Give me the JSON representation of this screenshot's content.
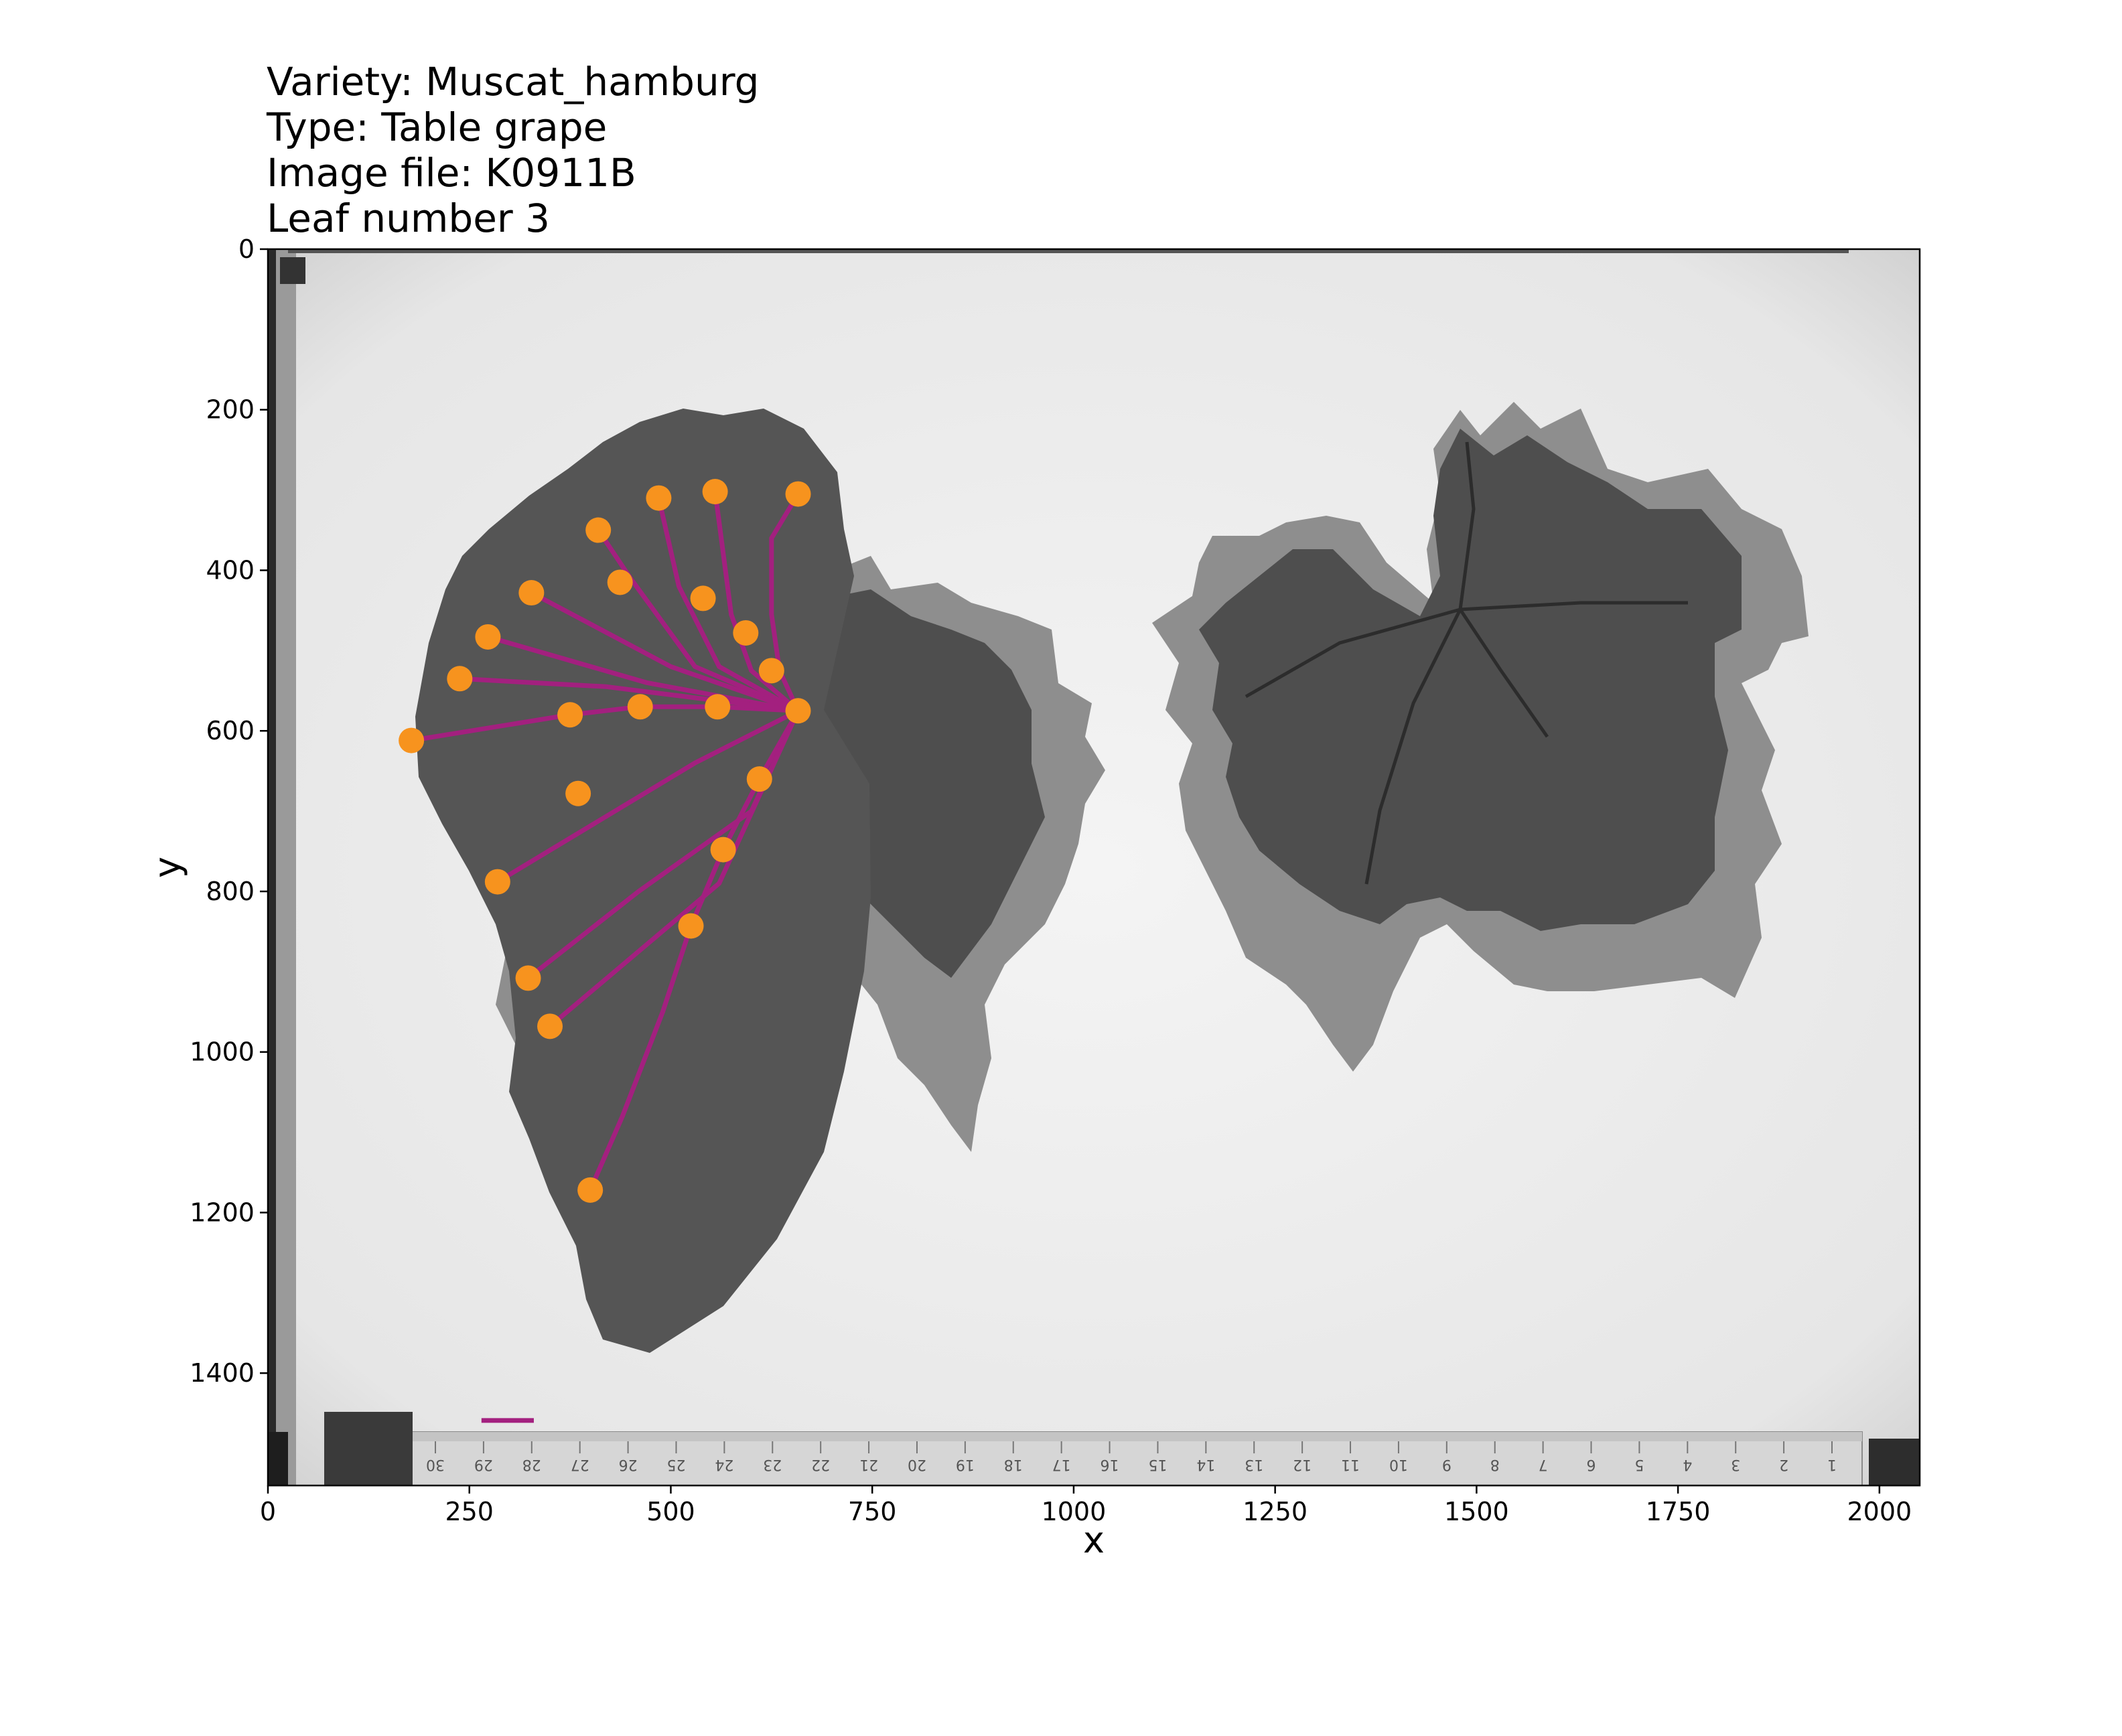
{
  "title_lines": [
    "Variety: Muscat_hamburg",
    "Type: Table grape",
    "Image file: K0911B",
    "Leaf number 3"
  ],
  "colors": {
    "landmark": "#f7931e",
    "outline": "#a3207f",
    "scale_bar": "#a3207f",
    "background": "#ececec",
    "leaf_dark": "#4e4e4e",
    "leaf_light": "#8e8e8e"
  },
  "ruler_numbers": [
    "30",
    "29",
    "28",
    "27",
    "26",
    "25",
    "24",
    "23",
    "22",
    "21",
    "20",
    "19",
    "18",
    "17",
    "16",
    "15",
    "14",
    "13",
    "12",
    "11",
    "10",
    "9",
    "8",
    "7",
    "6",
    "5",
    "4",
    "3",
    "2",
    "1"
  ],
  "chart_data": {
    "type": "scatter",
    "xlabel": "x",
    "ylabel": "y",
    "xlim": [
      0,
      2050
    ],
    "ylim": [
      1540,
      0
    ],
    "x_ticks": [
      0,
      250,
      500,
      750,
      1000,
      1250,
      1500,
      1750,
      2000
    ],
    "y_ticks": [
      0,
      200,
      400,
      600,
      800,
      1000,
      1200,
      1400
    ],
    "grid": false,
    "background": "grayscale photograph of two grape leaves on a light board with a ruler along the bottom",
    "landmarks": {
      "color": "#f7931e",
      "points": [
        [
          658,
          305
        ],
        [
          555,
          302
        ],
        [
          485,
          310
        ],
        [
          410,
          350
        ],
        [
          327,
          428
        ],
        [
          437,
          415
        ],
        [
          540,
          435
        ],
        [
          593,
          478
        ],
        [
          625,
          525
        ],
        [
          273,
          483
        ],
        [
          238,
          535
        ],
        [
          375,
          580
        ],
        [
          462,
          570
        ],
        [
          558,
          570
        ],
        [
          658,
          575
        ],
        [
          178,
          612
        ],
        [
          610,
          660
        ],
        [
          385,
          678
        ],
        [
          565,
          748
        ],
        [
          285,
          788
        ],
        [
          525,
          843
        ],
        [
          323,
          908
        ],
        [
          350,
          968
        ],
        [
          400,
          1172
        ]
      ]
    },
    "veins": {
      "color": "#a3207f",
      "polylines": [
        [
          [
            400,
            1172
          ],
          [
            440,
            1080
          ],
          [
            490,
            950
          ],
          [
            525,
            843
          ],
          [
            565,
            748
          ],
          [
            610,
            660
          ],
          [
            658,
            575
          ]
        ],
        [
          [
            658,
            575
          ],
          [
            558,
            570
          ],
          [
            462,
            570
          ],
          [
            375,
            580
          ],
          [
            178,
            612
          ]
        ],
        [
          [
            658,
            575
          ],
          [
            635,
            525
          ],
          [
            625,
            455
          ],
          [
            625,
            360
          ],
          [
            658,
            305
          ]
        ],
        [
          [
            658,
            575
          ],
          [
            600,
            525
          ],
          [
            575,
            455
          ],
          [
            555,
            302
          ]
        ],
        [
          [
            658,
            575
          ],
          [
            560,
            520
          ],
          [
            510,
            420
          ],
          [
            485,
            310
          ]
        ],
        [
          [
            658,
            575
          ],
          [
            530,
            520
          ],
          [
            450,
            410
          ],
          [
            410,
            350
          ]
        ],
        [
          [
            658,
            575
          ],
          [
            500,
            520
          ],
          [
            327,
            428
          ]
        ],
        [
          [
            658,
            575
          ],
          [
            470,
            540
          ],
          [
            273,
            483
          ]
        ],
        [
          [
            658,
            575
          ],
          [
            420,
            545
          ],
          [
            238,
            535
          ]
        ],
        [
          [
            658,
            575
          ],
          [
            530,
            640
          ],
          [
            285,
            788
          ]
        ],
        [
          [
            658,
            575
          ],
          [
            600,
            700
          ],
          [
            460,
            800
          ],
          [
            323,
            908
          ]
        ],
        [
          [
            658,
            575
          ],
          [
            560,
            790
          ],
          [
            350,
            968
          ]
        ]
      ]
    },
    "scale_bar": {
      "color": "#a3207f",
      "x": [
        265,
        330
      ],
      "y": 1459
    }
  }
}
